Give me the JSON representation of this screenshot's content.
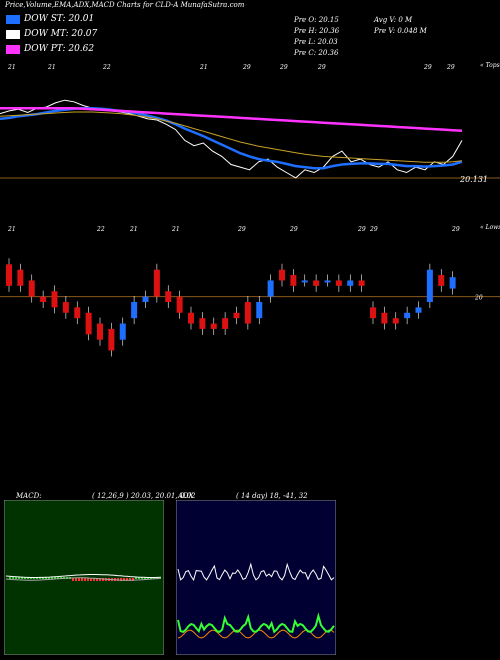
{
  "header": {
    "title": "Price,Volume,EMA,ADX,MACD Charts for CLD-A MunafaSutra.com"
  },
  "legend": [
    {
      "label": "DOW ST: 20.01",
      "color": "#1e6fff"
    },
    {
      "label": "DOW MT: 20.07",
      "color": "#ffffff"
    },
    {
      "label": "DOW PT: 20.62",
      "color": "#ff33ff"
    }
  ],
  "ohlc": {
    "open": "Pre   O: 20.15",
    "high": "Pre   H: 20.36",
    "low": "Pre   L: 20.03",
    "close": "Pre   C: 20.36",
    "avg_vol": "Avg V: 0  M",
    "prev_vol": "Pre   V: 0.048  M"
  },
  "chart_data": [
    {
      "type": "line",
      "title": "",
      "price_label": "20.131",
      "top_label": "« Tops",
      "date_ticks": [
        "21",
        "21",
        "22",
        "21",
        "29",
        "29",
        "29",
        "29",
        "29"
      ],
      "ylim": [
        18.6,
        21.4
      ],
      "series": [
        {
          "name": "price",
          "color": "#ffffff",
          "values": [
            20.4,
            20.45,
            20.48,
            20.42,
            20.5,
            20.52,
            20.6,
            20.65,
            20.62,
            20.55,
            20.5,
            20.48,
            20.45,
            20.43,
            20.4,
            20.35,
            20.3,
            20.28,
            20.2,
            20.1,
            19.9,
            19.8,
            19.85,
            19.7,
            19.6,
            19.45,
            19.4,
            19.35,
            19.5,
            19.55,
            19.4,
            19.3,
            19.2,
            19.35,
            19.3,
            19.4,
            19.6,
            19.7,
            19.5,
            19.55,
            19.45,
            19.4,
            19.5,
            19.35,
            19.3,
            19.4,
            19.35,
            19.5,
            19.45,
            19.6,
            19.9
          ]
        },
        {
          "name": "ema_short",
          "color": "#1e6fff",
          "values": [
            20.3,
            20.32,
            20.35,
            20.37,
            20.39,
            20.42,
            20.45,
            20.47,
            20.49,
            20.5,
            20.5,
            20.49,
            20.47,
            20.45,
            20.43,
            20.4,
            20.36,
            20.32,
            20.27,
            20.2,
            20.12,
            20.05,
            19.98,
            19.9,
            19.82,
            19.74,
            19.66,
            19.6,
            19.55,
            19.52,
            19.5,
            19.46,
            19.42,
            19.4,
            19.38,
            19.38,
            19.42,
            19.45,
            19.46,
            19.47,
            19.47,
            19.46,
            19.46,
            19.44,
            19.42,
            19.42,
            19.41,
            19.42,
            19.43,
            19.45,
            19.5
          ]
        },
        {
          "name": "ema_mid",
          "color": "#c9a227",
          "values": [
            20.35,
            20.36,
            20.37,
            20.38,
            20.39,
            20.4,
            20.41,
            20.42,
            20.43,
            20.43,
            20.43,
            20.42,
            20.41,
            20.4,
            20.38,
            20.36,
            20.33,
            20.3,
            20.26,
            20.22,
            20.17,
            20.12,
            20.07,
            20.02,
            19.97,
            19.92,
            19.87,
            19.83,
            19.79,
            19.76,
            19.73,
            19.7,
            19.67,
            19.64,
            19.62,
            19.6,
            19.59,
            19.58,
            19.57,
            19.56,
            19.55,
            19.54,
            19.53,
            19.52,
            19.51,
            19.5,
            19.49,
            19.49,
            19.49,
            19.5,
            19.52
          ]
        },
        {
          "name": "ema_long",
          "color": "#ff33ff",
          "values": [
            20.5,
            20.5,
            20.5,
            20.5,
            20.5,
            20.5,
            20.5,
            20.5,
            20.5,
            20.49,
            20.48,
            20.47,
            20.46,
            20.45,
            20.44,
            20.43,
            20.42,
            20.41,
            20.4,
            20.39,
            20.38,
            20.37,
            20.36,
            20.35,
            20.34,
            20.33,
            20.32,
            20.31,
            20.3,
            20.29,
            20.28,
            20.27,
            20.26,
            20.25,
            20.24,
            20.23,
            20.22,
            20.21,
            20.2,
            20.19,
            20.18,
            20.17,
            20.16,
            20.15,
            20.14,
            20.13,
            20.12,
            20.11,
            20.1,
            20.09,
            20.08
          ]
        }
      ]
    },
    {
      "type": "bar",
      "title": "",
      "lows_label": "« Lows",
      "level_label": "20",
      "date_ticks": [
        "21",
        "22",
        "21",
        "21",
        "29",
        "29",
        "29",
        "29",
        "29"
      ],
      "candles": [
        {
          "open": 20.6,
          "close": 20.2,
          "color": "red"
        },
        {
          "open": 20.5,
          "close": 20.2,
          "color": "red"
        },
        {
          "open": 20.3,
          "close": 20.0,
          "color": "red"
        },
        {
          "open": 20.0,
          "close": 19.9,
          "color": "red"
        },
        {
          "open": 20.1,
          "close": 19.8,
          "color": "red"
        },
        {
          "open": 19.9,
          "close": 19.7,
          "color": "red"
        },
        {
          "open": 19.8,
          "close": 19.6,
          "color": "red"
        },
        {
          "open": 19.7,
          "close": 19.3,
          "color": "red"
        },
        {
          "open": 19.5,
          "close": 19.2,
          "color": "red"
        },
        {
          "open": 19.4,
          "close": 19.0,
          "color": "red"
        },
        {
          "open": 19.2,
          "close": 19.5,
          "color": "blue"
        },
        {
          "open": 19.6,
          "close": 19.9,
          "color": "blue"
        },
        {
          "open": 19.9,
          "close": 20.0,
          "color": "blue"
        },
        {
          "open": 20.5,
          "close": 20.0,
          "color": "red"
        },
        {
          "open": 20.1,
          "close": 19.9,
          "color": "red"
        },
        {
          "open": 20.0,
          "close": 19.7,
          "color": "red"
        },
        {
          "open": 19.7,
          "close": 19.5,
          "color": "red"
        },
        {
          "open": 19.6,
          "close": 19.4,
          "color": "red"
        },
        {
          "open": 19.5,
          "close": 19.4,
          "color": "red"
        },
        {
          "open": 19.6,
          "close": 19.4,
          "color": "red"
        },
        {
          "open": 19.7,
          "close": 19.6,
          "color": "red"
        },
        {
          "open": 19.9,
          "close": 19.5,
          "color": "red"
        },
        {
          "open": 19.6,
          "close": 19.9,
          "color": "blue"
        },
        {
          "open": 20.0,
          "close": 20.3,
          "color": "blue"
        },
        {
          "open": 20.5,
          "close": 20.3,
          "color": "red"
        },
        {
          "open": 20.4,
          "close": 20.2,
          "color": "red"
        },
        {
          "open": 20.3,
          "close": 20.3,
          "color": "blue"
        },
        {
          "open": 20.3,
          "close": 20.2,
          "color": "red"
        },
        {
          "open": 20.3,
          "close": 20.3,
          "color": "blue"
        },
        {
          "open": 20.3,
          "close": 20.2,
          "color": "red"
        },
        {
          "open": 20.2,
          "close": 20.3,
          "color": "blue"
        },
        {
          "open": 20.3,
          "close": 20.2,
          "color": "red"
        },
        {
          "open": 19.8,
          "close": 19.6,
          "color": "red"
        },
        {
          "open": 19.7,
          "close": 19.5,
          "color": "red"
        },
        {
          "open": 19.6,
          "close": 19.5,
          "color": "red"
        },
        {
          "open": 19.6,
          "close": 19.7,
          "color": "blue"
        },
        {
          "open": 19.7,
          "close": 19.8,
          "color": "blue"
        },
        {
          "open": 19.9,
          "close": 20.5,
          "color": "blue"
        },
        {
          "open": 20.4,
          "close": 20.2,
          "color": "red"
        },
        {
          "open": 20.15,
          "close": 20.36,
          "color": "blue"
        }
      ]
    }
  ],
  "macd": {
    "label": "MACD:",
    "values": "( 12,26,9 ) 20.03,  20.01,  0.02"
  },
  "adx": {
    "label": "ADX",
    "values": "( 14  day) 18,  -41,  32"
  },
  "colors": {
    "red": "#dd1111",
    "blue": "#1e6fff",
    "macd_bg": "#003300",
    "adx_bg": "#000033"
  }
}
